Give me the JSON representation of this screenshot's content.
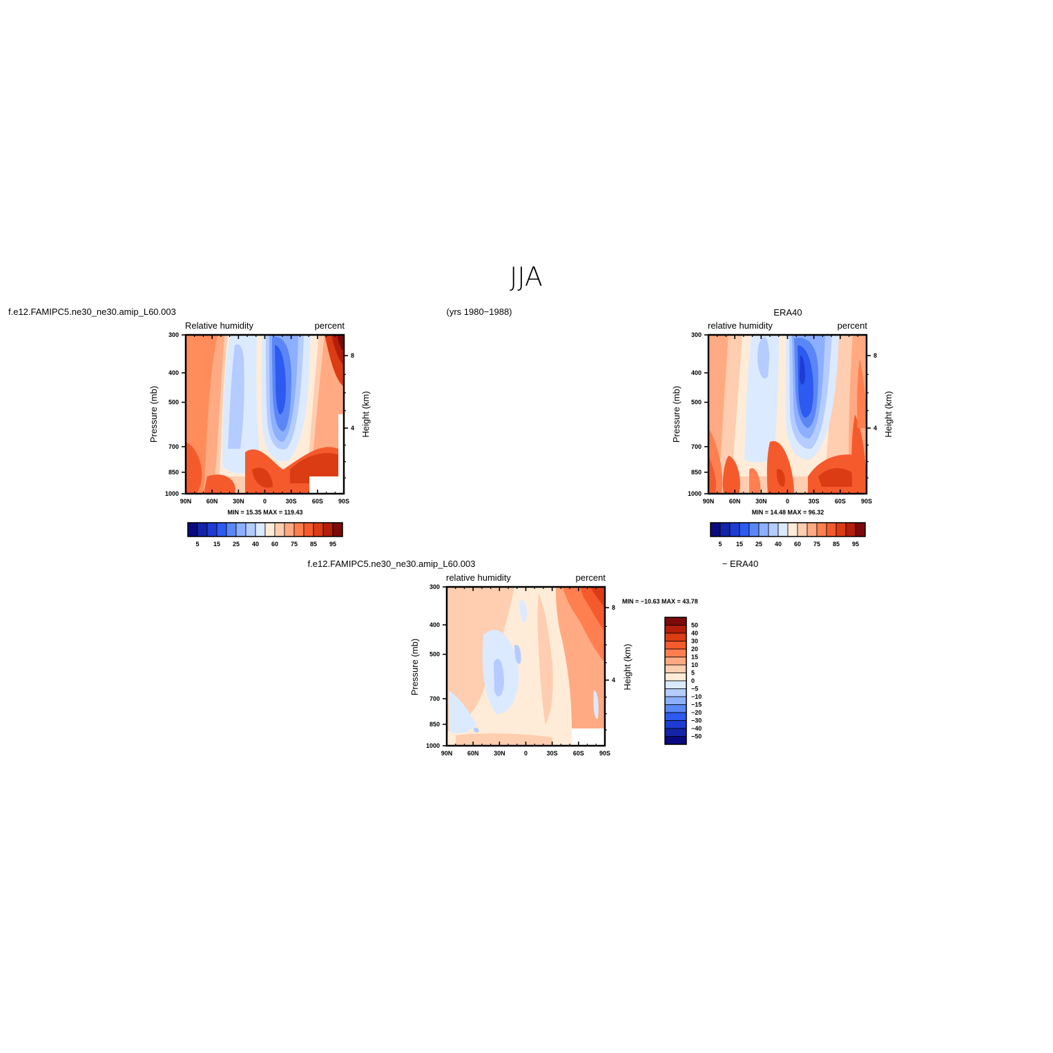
{
  "figure": {
    "title": "JJA",
    "case_name": "f.e12.FAMIPC5.ne30_ne30.amip_L60.003",
    "years": "(yrs 1980−1988)",
    "obs_name": "ERA40",
    "diff_case_name": "f.e12.FAMIPC5.ne30_ne30.amip_L60.003",
    "diff_obs_name": "− ERA40"
  },
  "colors": {
    "abs_scale": [
      "#0a0a80",
      "#1424a8",
      "#1e3cd2",
      "#2d5af0",
      "#5a87f5",
      "#8cafff",
      "#b4ccff",
      "#dceaff",
      "#ffecd8",
      "#ffcdb0",
      "#ffaa82",
      "#ff7f50",
      "#f55a2d",
      "#dc3c14",
      "#b41e0a",
      "#7d0a0a"
    ],
    "diff_scale": [
      "#0a0a80",
      "#1424a8",
      "#1e3cd2",
      "#2d5af0",
      "#5a87f5",
      "#8cafff",
      "#b4ccff",
      "#dceaff",
      "#ffecd8",
      "#ffcdb0",
      "#ffaa82",
      "#ff7f50",
      "#f55a2d",
      "#dc3c14",
      "#b41e0a",
      "#7d0a0a"
    ]
  },
  "chart_data": [
    {
      "type": "heatmap",
      "id": "model",
      "title_left": "Relative  humidity",
      "title_right": "percent",
      "ylabel": "Pressure  (mb)",
      "ylabel_right": "Height  (km)",
      "x_ticks": [
        "90N",
        "60N",
        "30N",
        "0",
        "30S",
        "60S",
        "90S"
      ],
      "y_ticks": [
        "300",
        "400",
        "500",
        "700",
        "850",
        "1000"
      ],
      "y_ticks_right": [
        "8",
        "4"
      ],
      "min_max": "MIN =   15.35   MAX =  119.43",
      "colorbar_labels": [
        "5",
        "15",
        "25",
        "40",
        "60",
        "75",
        "85",
        "95"
      ],
      "color_levels": [
        5,
        10,
        15,
        20,
        25,
        30,
        40,
        50,
        60,
        70,
        75,
        80,
        85,
        90,
        95
      ],
      "x_lat": [
        90,
        60,
        30,
        0,
        -30,
        -60,
        -90
      ],
      "y_pressure": [
        300,
        400,
        500,
        700,
        850,
        1000
      ]
    },
    {
      "type": "heatmap",
      "id": "obs",
      "title_left": "relative  humidity",
      "title_right": "percent",
      "ylabel": "Pressure  (mb)",
      "ylabel_right": "Height  (km)",
      "x_ticks": [
        "90N",
        "60N",
        "30N",
        "0",
        "30S",
        "60S",
        "90S"
      ],
      "y_ticks": [
        "300",
        "400",
        "500",
        "700",
        "850",
        "1000"
      ],
      "y_ticks_right": [
        "8",
        "4"
      ],
      "min_max": "MIN =   14.48   MAX =   96.32",
      "colorbar_labels": [
        "5",
        "15",
        "25",
        "40",
        "60",
        "75",
        "85",
        "95"
      ],
      "color_levels": [
        5,
        10,
        15,
        20,
        25,
        30,
        40,
        50,
        60,
        70,
        75,
        80,
        85,
        90,
        95
      ],
      "x_lat": [
        90,
        60,
        30,
        0,
        -30,
        -60,
        -90
      ],
      "y_pressure": [
        300,
        400,
        500,
        700,
        850,
        1000
      ]
    },
    {
      "type": "heatmap",
      "id": "diff",
      "title_left": "relative  humidity",
      "title_right": "percent",
      "ylabel": "Pressure  (mb)",
      "ylabel_right": "Height  (km)",
      "x_ticks": [
        "90N",
        "60N",
        "30N",
        "0",
        "30S",
        "60S",
        "90S"
      ],
      "y_ticks": [
        "300",
        "400",
        "500",
        "700",
        "850",
        "1000"
      ],
      "y_ticks_right": [
        "8",
        "4"
      ],
      "min_max": "MIN = −10.63   MAX =   43.78",
      "colorbar_labels": [
        "50",
        "40",
        "30",
        "20",
        "15",
        "10",
        "5",
        "0",
        "−5",
        "−10",
        "−15",
        "−20",
        "−30",
        "−40",
        "−50"
      ],
      "color_levels": [
        -50,
        -40,
        -30,
        -20,
        -15,
        -10,
        -5,
        0,
        5,
        10,
        15,
        20,
        30,
        40,
        50
      ],
      "x_lat": [
        90,
        60,
        30,
        0,
        -30,
        -60,
        -90
      ],
      "y_pressure": [
        300,
        400,
        500,
        700,
        850,
        1000
      ]
    }
  ]
}
